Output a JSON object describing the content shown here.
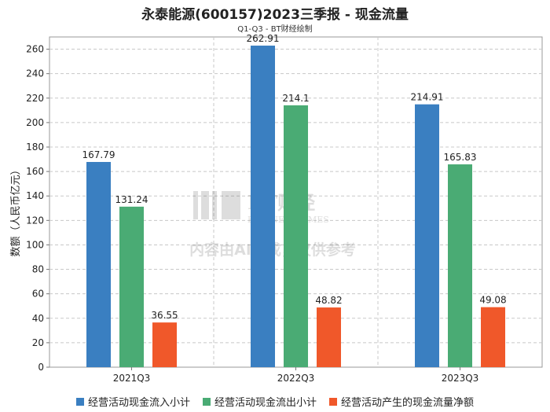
{
  "title": "永泰能源(600157)2023三季报 - 现金流量",
  "subtitle": "Q1-Q3 - BT财经绘制",
  "watermark": {
    "logo": "BT财经",
    "logo_sub": "BUSINESS TIMES",
    "note": "内容由AI生成，仅供参考"
  },
  "chart_data": {
    "type": "bar",
    "categories": [
      "2021Q3",
      "2022Q3",
      "2023Q3"
    ],
    "series": [
      {
        "name": "经营活动现金流入小计",
        "color": "#3a7fc1",
        "values": [
          167.79,
          262.91,
          214.91
        ]
      },
      {
        "name": "经营活动现金流出小计",
        "color": "#4aab74",
        "values": [
          131.24,
          214.1,
          165.83
        ]
      },
      {
        "name": "经营活动产生的现金流量净额",
        "color": "#f0582a",
        "values": [
          36.55,
          48.82,
          49.08
        ]
      }
    ],
    "ylabel": "数额（人民币亿元）",
    "ylim": [
      0,
      270
    ],
    "yticks": [
      0,
      20,
      40,
      60,
      80,
      100,
      120,
      140,
      160,
      180,
      200,
      220,
      240,
      260
    ],
    "grid": true,
    "legend_position": "bottom"
  }
}
